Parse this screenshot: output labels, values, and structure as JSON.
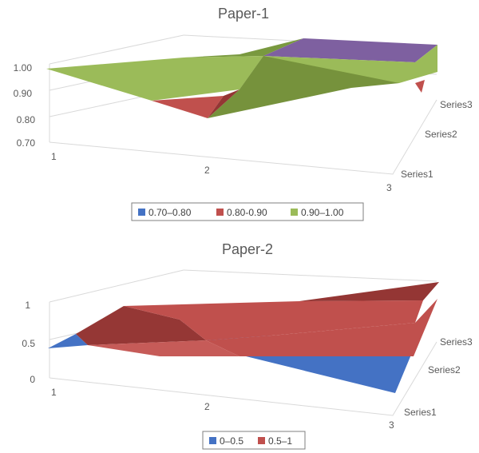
{
  "chart_data": [
    {
      "type": "surface",
      "title": "Paper-1",
      "x_categories": [
        "1",
        "2",
        "3"
      ],
      "series": [
        "Series1",
        "Series2",
        "Series3"
      ],
      "z_ticks": [
        "0.70",
        "0.80",
        "0.90",
        "1.00"
      ],
      "zlim": [
        0.7,
        1.0
      ],
      "legend": [
        {
          "label": "0.70–0.80",
          "color": "#4472c4"
        },
        {
          "label": "0.80-0.90",
          "color": "#c0504d"
        },
        {
          "label": "0.90–1.00",
          "color": "#9bbb59"
        }
      ],
      "legend_position": "bottom"
    },
    {
      "type": "surface",
      "title": "Paper-2",
      "x_categories": [
        "1",
        "2",
        "3"
      ],
      "series": [
        "Series1",
        "Series2",
        "Series3"
      ],
      "z_ticks": [
        "0",
        "0.5",
        "1"
      ],
      "zlim": [
        0,
        1
      ],
      "legend": [
        {
          "label": "0–0.5",
          "color": "#4472c4"
        },
        {
          "label": "0.5–1",
          "color": "#c0504d"
        }
      ],
      "legend_position": "bottom"
    }
  ]
}
